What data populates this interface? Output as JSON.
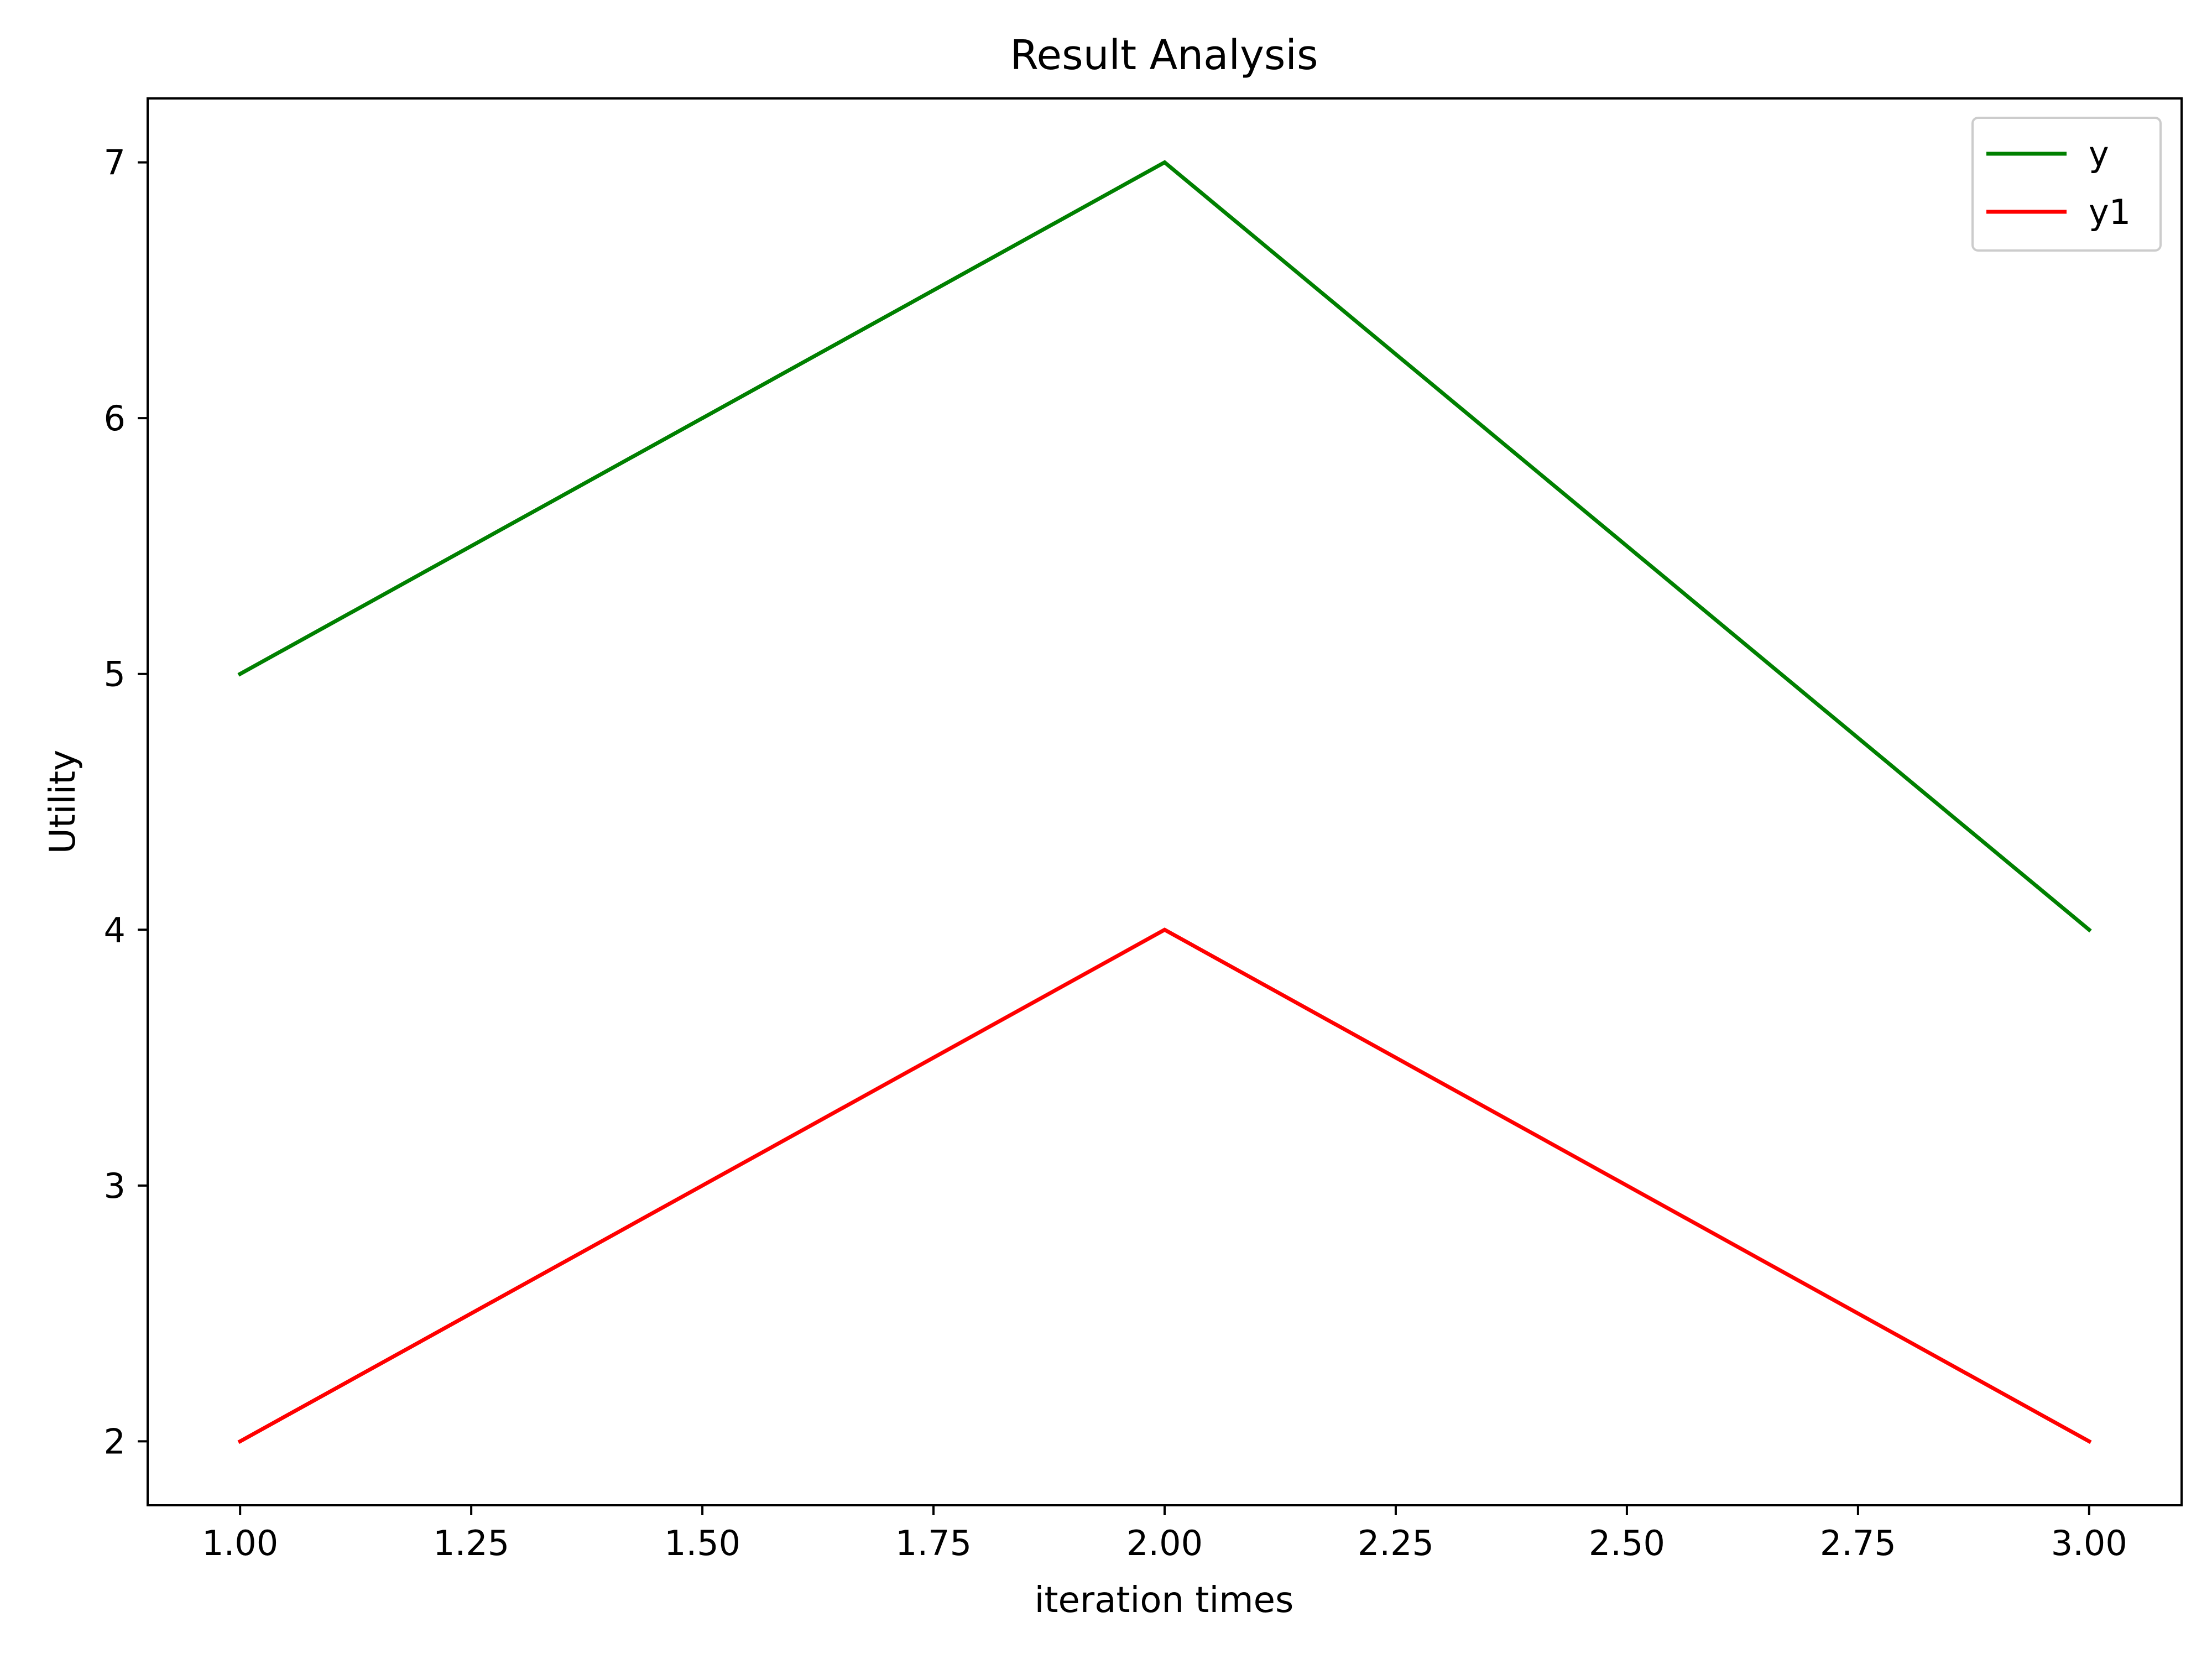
{
  "chart_data": {
    "type": "line",
    "title": "Result Analysis",
    "xlabel": "iteration times",
    "ylabel": "Utility",
    "x": [
      1,
      2,
      3
    ],
    "series": [
      {
        "name": "y",
        "values": [
          5,
          7,
          4
        ],
        "color": "#008000"
      },
      {
        "name": "y1",
        "values": [
          2,
          4,
          2
        ],
        "color": "#ff0000"
      }
    ],
    "xlim": [
      0.9,
      3.1
    ],
    "ylim": [
      1.75,
      7.25
    ],
    "xticks": [
      1.0,
      1.25,
      1.5,
      1.75,
      2.0,
      2.25,
      2.5,
      2.75,
      3.0
    ],
    "xtick_labels": [
      "1.00",
      "1.25",
      "1.50",
      "1.75",
      "2.00",
      "2.25",
      "2.50",
      "2.75",
      "3.00"
    ],
    "yticks": [
      2,
      3,
      4,
      5,
      6,
      7
    ],
    "ytick_labels": [
      "2",
      "3",
      "4",
      "5",
      "6",
      "7"
    ],
    "grid": false,
    "legend_position": "top-right"
  }
}
